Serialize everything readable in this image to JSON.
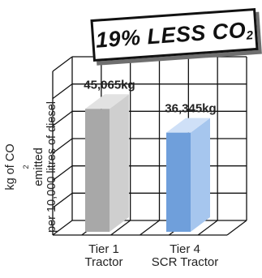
{
  "banner": {
    "prefix": "19% LESS CO",
    "subscript": "2"
  },
  "y_axis": {
    "line1_prefix": "kg of CO",
    "line1_subscript": "2",
    "line1_suffix": " emitted",
    "line2": "per 10,000 litres of diesel"
  },
  "chart_data": {
    "type": "bar",
    "categories": [
      "Tier 1\nTractor",
      "Tier 4\nSCR Tractor"
    ],
    "values": [
      45065,
      36345
    ],
    "value_labels": [
      "45,065kg",
      "36,345kg"
    ],
    "ylabel": "kg of CO2 emitted per 10,000 litres of diesel",
    "ylim": [
      0,
      60000
    ],
    "grid": true,
    "legend": "none",
    "colors": {
      "bar_1_front": "#a8a8a8",
      "bar_1_side": "#cfcfcf",
      "bar_1_top": "#e2e2e2",
      "bar_2_front": "#6f9fdb",
      "bar_2_side": "#a6c6ee",
      "bar_2_top": "#cfe0f7",
      "grid": "#111111"
    }
  }
}
